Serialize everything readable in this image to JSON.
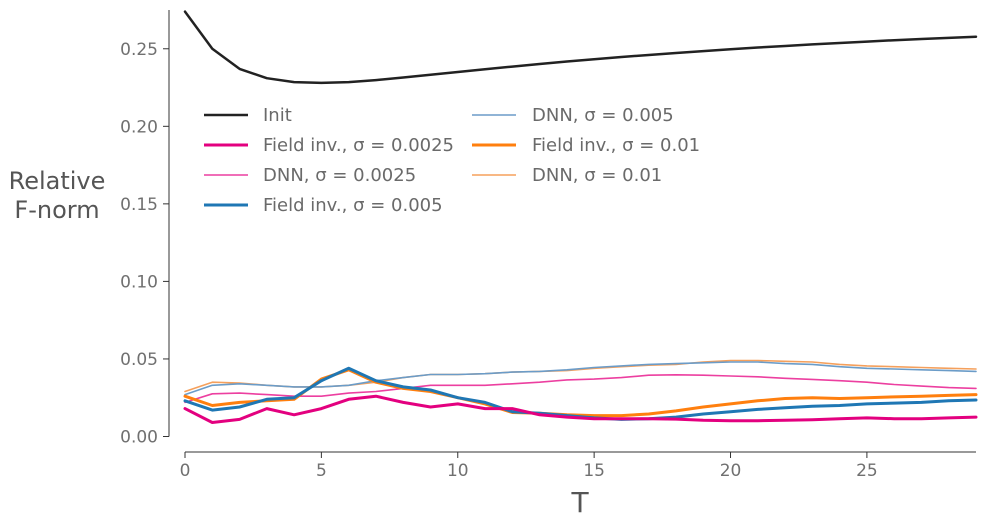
{
  "chart_data": {
    "type": "line",
    "xlabel": "T",
    "ylabel_lines": [
      "Relative",
      "F-norm"
    ],
    "xlim": [
      0,
      29
    ],
    "ylim": [
      -0.01,
      0.275
    ],
    "xticks": [
      0,
      5,
      10,
      15,
      20,
      25
    ],
    "xtick_labels": [
      "0",
      "5",
      "10",
      "15",
      "20",
      "25"
    ],
    "yticks": [
      0.0,
      0.05,
      0.1,
      0.15,
      0.2,
      0.25
    ],
    "ytick_labels": [
      "0.00",
      "0.05",
      "0.10",
      "0.15",
      "0.20",
      "0.25"
    ],
    "grid": false,
    "legend": {
      "placement": "upper-left",
      "columns": 2
    },
    "x": [
      0,
      1,
      2,
      3,
      4,
      5,
      6,
      7,
      8,
      9,
      10,
      11,
      12,
      13,
      14,
      15,
      16,
      17,
      18,
      19,
      20,
      21,
      22,
      23,
      24,
      25,
      26,
      27,
      28,
      29
    ],
    "series": [
      {
        "name": "Init",
        "color": "#222222",
        "width": 2.5,
        "values": [
          0.274,
          0.25,
          0.237,
          0.231,
          0.2285,
          0.228,
          0.2285,
          0.2298,
          0.2315,
          0.2333,
          0.235,
          0.2368,
          0.2385,
          0.2402,
          0.2418,
          0.2433,
          0.2447,
          0.246,
          0.2473,
          0.2485,
          0.2497,
          0.2508,
          0.2518,
          0.2528,
          0.2537,
          0.2546,
          0.2555,
          0.2563,
          0.257,
          0.2578
        ]
      },
      {
        "name": "Field inv., σ = 0.0025",
        "color": "#e3007f",
        "width": 3,
        "values": [
          0.018,
          0.009,
          0.011,
          0.018,
          0.014,
          0.018,
          0.024,
          0.026,
          0.022,
          0.019,
          0.021,
          0.018,
          0.018,
          0.014,
          0.0125,
          0.0115,
          0.0115,
          0.0115,
          0.0112,
          0.0105,
          0.0102,
          0.0102,
          0.0105,
          0.0108,
          0.0115,
          0.012,
          0.0115,
          0.0115,
          0.012,
          0.0125
        ]
      },
      {
        "name": "DNN, σ = 0.0025",
        "color": "#ec3fa0",
        "width": 1.6,
        "values": [
          0.022,
          0.0275,
          0.028,
          0.027,
          0.026,
          0.026,
          0.028,
          0.029,
          0.031,
          0.033,
          0.033,
          0.033,
          0.034,
          0.035,
          0.0365,
          0.037,
          0.038,
          0.0395,
          0.0398,
          0.0395,
          0.039,
          0.0385,
          0.0375,
          0.0368,
          0.036,
          0.035,
          0.0335,
          0.0325,
          0.0315,
          0.031
        ]
      },
      {
        "name": "Field inv., σ = 0.005",
        "color": "#1f77b4",
        "width": 3,
        "values": [
          0.023,
          0.017,
          0.019,
          0.024,
          0.025,
          0.036,
          0.044,
          0.036,
          0.032,
          0.03,
          0.025,
          0.022,
          0.016,
          0.015,
          0.0135,
          0.012,
          0.011,
          0.0115,
          0.0125,
          0.0145,
          0.016,
          0.0175,
          0.0185,
          0.0195,
          0.02,
          0.021,
          0.0215,
          0.022,
          0.023,
          0.0235
        ]
      },
      {
        "name": "DNN, σ = 0.005",
        "color": "#6b9cc8",
        "width": 1.6,
        "values": [
          0.027,
          0.033,
          0.034,
          0.033,
          0.032,
          0.032,
          0.033,
          0.036,
          0.038,
          0.04,
          0.04,
          0.0405,
          0.0415,
          0.042,
          0.043,
          0.0445,
          0.0455,
          0.0465,
          0.047,
          0.0475,
          0.048,
          0.048,
          0.047,
          0.0465,
          0.045,
          0.044,
          0.0435,
          0.043,
          0.0425,
          0.042
        ]
      },
      {
        "name": "Field inv., σ = 0.01",
        "color": "#ff7f0e",
        "width": 3,
        "values": [
          0.026,
          0.02,
          0.022,
          0.023,
          0.024,
          0.037,
          0.043,
          0.035,
          0.031,
          0.029,
          0.025,
          0.021,
          0.0155,
          0.015,
          0.014,
          0.0135,
          0.0135,
          0.0145,
          0.0165,
          0.019,
          0.021,
          0.023,
          0.0245,
          0.025,
          0.0245,
          0.025,
          0.0255,
          0.026,
          0.0265,
          0.027
        ]
      },
      {
        "name": "DNN, σ = 0.01",
        "color": "#f5a05c",
        "width": 1.6,
        "values": [
          0.029,
          0.035,
          0.0345,
          0.033,
          0.032,
          0.032,
          0.033,
          0.035,
          0.038,
          0.04,
          0.04,
          0.0405,
          0.0415,
          0.042,
          0.0425,
          0.044,
          0.045,
          0.046,
          0.0465,
          0.048,
          0.049,
          0.049,
          0.0485,
          0.048,
          0.0465,
          0.0455,
          0.045,
          0.0445,
          0.044,
          0.0435
        ]
      }
    ]
  }
}
